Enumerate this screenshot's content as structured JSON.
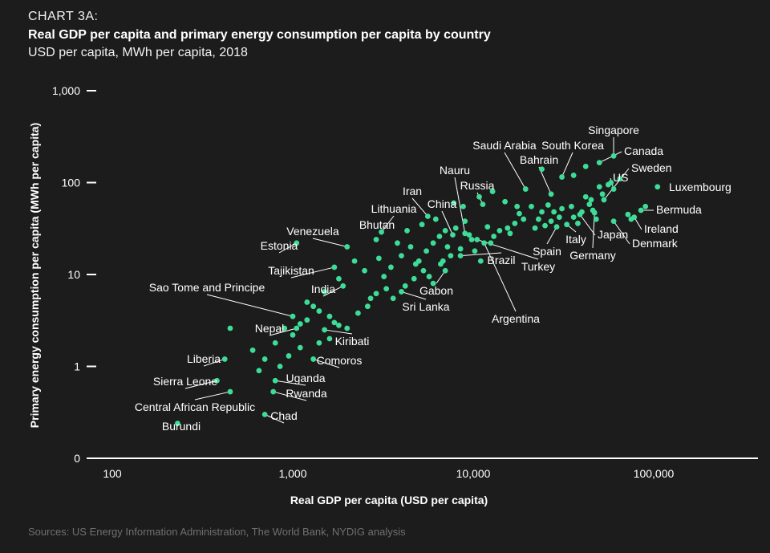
{
  "header": {
    "kicker": "CHART 3A:",
    "title": "Real GDP per capita and primary energy consumption per capita by country",
    "subtitle": "USD per capita, MWh per capita, 2018"
  },
  "source": "Sources: US Energy Information Administration, The World Bank, NYDIG analysis",
  "colors": {
    "background": "#1c1c1c",
    "point": "#3ddc97",
    "text": "#ffffff",
    "source": "#6f6f6f"
  },
  "chart_data": {
    "type": "scatter",
    "xscale": "log",
    "yscale": "log",
    "xlabel": "Real GDP per capita (USD per capita)",
    "ylabel": "Primary energy consumption per capita (MWh per capita)",
    "xlim": [
      100,
      300000
    ],
    "ylim": [
      0.1,
      1000
    ],
    "xticks": [
      {
        "v": 100,
        "label": "100"
      },
      {
        "v": 1000,
        "label": "1,000"
      },
      {
        "v": 10000,
        "label": "10,000"
      },
      {
        "v": 100000,
        "label": "100,000"
      }
    ],
    "yticks": [
      {
        "v": 0.1,
        "label": "0"
      },
      {
        "v": 1,
        "label": "1"
      },
      {
        "v": 10,
        "label": "10"
      },
      {
        "v": 100,
        "label": "100"
      },
      {
        "v": 1000,
        "label": "1,000"
      }
    ],
    "labeled_points": [
      {
        "name": "Singapore",
        "gdp": 60000,
        "energy": 195
      },
      {
        "name": "Saudi Arabia",
        "gdp": 19500,
        "energy": 85
      },
      {
        "name": "South Korea",
        "gdp": 31000,
        "energy": 115
      },
      {
        "name": "Bahrain",
        "gdp": 27000,
        "energy": 75
      },
      {
        "name": "Canada",
        "gdp": 50000,
        "energy": 165
      },
      {
        "name": "US",
        "gdp": 60000,
        "energy": 85
      },
      {
        "name": "Sweden",
        "gdp": 53000,
        "energy": 65
      },
      {
        "name": "Luxembourg",
        "gdp": 105000,
        "energy": 90
      },
      {
        "name": "Bermuda",
        "gdp": 85000,
        "energy": 50
      },
      {
        "name": "Ireland",
        "gdp": 78000,
        "energy": 42
      },
      {
        "name": "Denmark",
        "gdp": 60000,
        "energy": 38
      },
      {
        "name": "Japan",
        "gdp": 39000,
        "energy": 45
      },
      {
        "name": "Germany",
        "gdp": 47000,
        "energy": 47
      },
      {
        "name": "Italy",
        "gdp": 33000,
        "energy": 35
      },
      {
        "name": "Spain",
        "gdp": 29000,
        "energy": 33
      },
      {
        "name": "Turkey",
        "gdp": 10500,
        "energy": 24
      },
      {
        "name": "Brazil",
        "gdp": 8500,
        "energy": 16
      },
      {
        "name": "Argentina",
        "gdp": 11500,
        "energy": 22
      },
      {
        "name": "Russia",
        "gdp": 11300,
        "energy": 58
      },
      {
        "name": "Nauru",
        "gdp": 9000,
        "energy": 28
      },
      {
        "name": "China",
        "gdp": 7700,
        "energy": 27
      },
      {
        "name": "Iran",
        "gdp": 5600,
        "energy": 43
      },
      {
        "name": "Lithuania",
        "gdp": 3100,
        "energy": 29
      },
      {
        "name": "Bhutan",
        "gdp": 2900,
        "energy": 24
      },
      {
        "name": "Venezuela",
        "gdp": 2000,
        "energy": 20
      },
      {
        "name": "Estonia",
        "gdp": 1050,
        "energy": 22
      },
      {
        "name": "Tajikistan",
        "gdp": 1700,
        "energy": 12
      },
      {
        "name": "India",
        "gdp": 1900,
        "energy": 7.5
      },
      {
        "name": "Gabon",
        "gdp": 7000,
        "energy": 11
      },
      {
        "name": "Sri Lanka",
        "gdp": 4000,
        "energy": 6.5
      },
      {
        "name": "Sao Tome and Principe",
        "gdp": 1000,
        "energy": 3.5
      },
      {
        "name": "Nepal",
        "gdp": 1050,
        "energy": 2.6
      },
      {
        "name": "Kiribati",
        "gdp": 1500,
        "energy": 2.5
      },
      {
        "name": "Comoros",
        "gdp": 1300,
        "energy": 1.2
      },
      {
        "name": "Liberia",
        "gdp": 420,
        "energy": 1.2
      },
      {
        "name": "Uganda",
        "gdp": 800,
        "energy": 0.7
      },
      {
        "name": "Sierra Leone",
        "gdp": 380,
        "energy": 0.7
      },
      {
        "name": "Rwanda",
        "gdp": 780,
        "energy": 0.53
      },
      {
        "name": "Central African Republic",
        "gdp": 450,
        "energy": 0.53
      },
      {
        "name": "Chad",
        "gdp": 700,
        "energy": 0.3
      },
      {
        "name": "Burundi",
        "gdp": 230,
        "energy": 0.24
      }
    ],
    "points": [
      [
        450,
        2.6
      ],
      [
        600,
        1.5
      ],
      [
        700,
        1.2
      ],
      [
        650,
        0.9
      ],
      [
        800,
        1.8
      ],
      [
        900,
        2.6
      ],
      [
        1000,
        2.2
      ],
      [
        1100,
        2.9
      ],
      [
        1200,
        3.2
      ],
      [
        1400,
        4.0
      ],
      [
        1600,
        3.5
      ],
      [
        1800,
        2.8
      ],
      [
        2000,
        2.6
      ],
      [
        2300,
        3.8
      ],
      [
        2700,
        5.5
      ],
      [
        3300,
        7.0
      ],
      [
        3600,
        5.5
      ],
      [
        4200,
        7.5
      ],
      [
        4700,
        9.0
      ],
      [
        5300,
        11
      ],
      [
        6000,
        8.0
      ],
      [
        6600,
        13
      ],
      [
        7500,
        16
      ],
      [
        8500,
        19
      ],
      [
        9500,
        27
      ],
      [
        10200,
        18
      ],
      [
        12500,
        22
      ],
      [
        14000,
        30
      ],
      [
        15500,
        32
      ],
      [
        17000,
        36
      ],
      [
        19000,
        40
      ],
      [
        21000,
        55
      ],
      [
        24000,
        48
      ],
      [
        26000,
        57
      ],
      [
        28000,
        48
      ],
      [
        30000,
        42
      ],
      [
        35000,
        55
      ],
      [
        42000,
        70
      ],
      [
        45000,
        65
      ],
      [
        52000,
        75
      ],
      [
        56000,
        95
      ],
      [
        3000,
        15
      ],
      [
        3500,
        12
      ],
      [
        4000,
        16
      ],
      [
        4500,
        20
      ],
      [
        5000,
        14
      ],
      [
        5500,
        18
      ],
      [
        6000,
        22
      ],
      [
        6500,
        26
      ],
      [
        7000,
        30
      ],
      [
        8000,
        32
      ],
      [
        9000,
        38
      ],
      [
        3200,
        9.5
      ],
      [
        2500,
        11
      ],
      [
        2200,
        14
      ],
      [
        1800,
        9.0
      ],
      [
        1500,
        6.5
      ],
      [
        1300,
        4.5
      ],
      [
        1600,
        2.0
      ],
      [
        1700,
        3.0
      ],
      [
        1100,
        1.6
      ],
      [
        950,
        1.3
      ],
      [
        850,
        1.0
      ],
      [
        1200,
        5.0
      ],
      [
        1400,
        1.8
      ],
      [
        2600,
        4.5
      ],
      [
        2900,
        6.2
      ],
      [
        4800,
        13
      ],
      [
        5700,
        9.5
      ],
      [
        6800,
        14
      ],
      [
        7200,
        20
      ],
      [
        9800,
        24
      ],
      [
        11000,
        14
      ],
      [
        12000,
        33
      ],
      [
        13000,
        26
      ],
      [
        16000,
        28
      ],
      [
        18000,
        46
      ],
      [
        22000,
        32
      ],
      [
        23000,
        40
      ],
      [
        25000,
        34
      ],
      [
        27000,
        38
      ],
      [
        31000,
        52
      ],
      [
        36000,
        42
      ],
      [
        38000,
        36
      ],
      [
        40000,
        48
      ],
      [
        44000,
        58
      ],
      [
        46000,
        50
      ],
      [
        48000,
        40
      ],
      [
        50000,
        90
      ],
      [
        58000,
        100
      ],
      [
        65000,
        110
      ],
      [
        72000,
        45
      ],
      [
        75000,
        40
      ],
      [
        90000,
        55
      ],
      [
        36000,
        120
      ],
      [
        24000,
        140
      ],
      [
        42000,
        150
      ],
      [
        3800,
        22
      ],
      [
        4300,
        30
      ],
      [
        5200,
        35
      ],
      [
        6200,
        40
      ],
      [
        7800,
        60
      ],
      [
        8800,
        55
      ],
      [
        10800,
        70
      ],
      [
        12800,
        80
      ],
      [
        15000,
        62
      ],
      [
        17500,
        55
      ]
    ]
  }
}
